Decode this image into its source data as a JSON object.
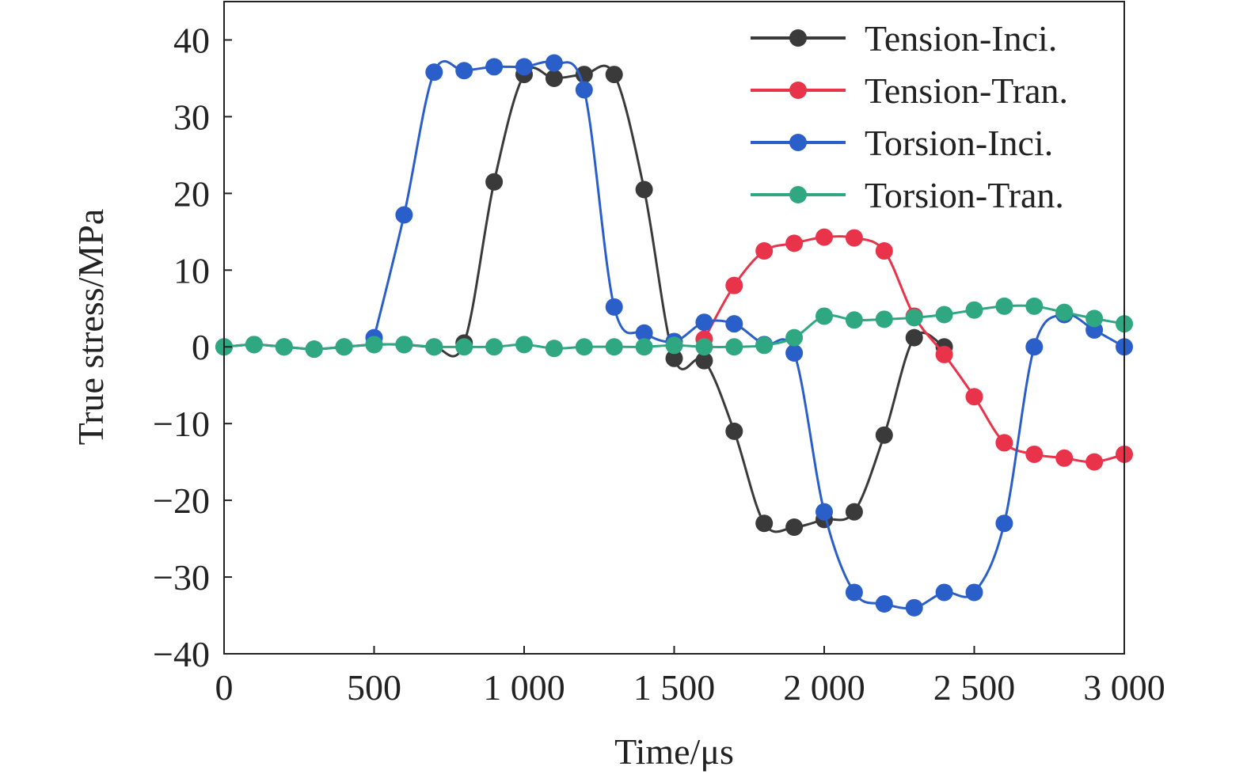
{
  "chart_data": {
    "type": "line",
    "xlabel": "Time/μs",
    "ylabel": "True stress/MPa",
    "xlim": [
      0,
      3000
    ],
    "ylim": [
      -40,
      45
    ],
    "x_ticks": [
      0,
      500,
      1000,
      1500,
      2000,
      2500,
      3000
    ],
    "x_tick_labels": [
      "0",
      "500",
      "1 000",
      "1 500",
      "2 000",
      "2 500",
      "3 000"
    ],
    "y_ticks": [
      -40,
      -30,
      -20,
      -10,
      0,
      10,
      20,
      30,
      40
    ],
    "y_tick_labels": [
      "−40",
      "−30",
      "−20",
      "−10",
      "0",
      "10",
      "20",
      "30",
      "40"
    ],
    "grid": false,
    "legend_position": "top-right",
    "series": [
      {
        "name": "Tension-Inci.",
        "color": "#3a3a3a",
        "x": [
          0,
          100,
          200,
          300,
          400,
          500,
          600,
          700,
          800,
          900,
          1000,
          1100,
          1200,
          1300,
          1400,
          1500,
          1600,
          1700,
          1800,
          1900,
          2000,
          2100,
          2200,
          2300,
          2400,
          2500,
          2600,
          2700,
          2800,
          2900,
          3000
        ],
        "y": [
          0,
          0.3,
          0,
          -0.3,
          0,
          0.3,
          0.3,
          0,
          0.5,
          21.5,
          35.5,
          35,
          35.5,
          35.5,
          20.5,
          -1.5,
          -1.8,
          -11,
          -23,
          -23.5,
          -22.5,
          -21.5,
          -11.5,
          1.2,
          0,
          null,
          null,
          null,
          null,
          null,
          null
        ]
      },
      {
        "name": "Tension-Tran.",
        "color": "#e8334a",
        "x": [
          1600,
          1700,
          1800,
          1900,
          2000,
          2100,
          2200,
          2300,
          2400,
          2500,
          2600,
          2700,
          2800,
          2900,
          3000
        ],
        "y": [
          1,
          8,
          12.5,
          13.5,
          14.3,
          14.2,
          12.5,
          4,
          -1,
          -6.5,
          -12.5,
          -14,
          -14.5,
          -15,
          -14
        ]
      },
      {
        "name": "Torsion-Inci.",
        "color": "#2a5fc9",
        "x": [
          500,
          600,
          700,
          800,
          900,
          1000,
          1100,
          1200,
          1300,
          1400,
          1500,
          1600,
          1700,
          1800,
          1900,
          2000,
          2100,
          2200,
          2300,
          2400,
          2500,
          2600,
          2700,
          2800,
          2900,
          3000
        ],
        "y": [
          1.2,
          17.2,
          35.8,
          36,
          36.5,
          36.5,
          37,
          33.5,
          5.2,
          1.8,
          0.7,
          3.2,
          3,
          0.3,
          -0.8,
          -21.5,
          -32,
          -33.5,
          -34,
          -32,
          -32,
          -23,
          0,
          4.2,
          2.2,
          0
        ]
      },
      {
        "name": "Torsion-Tran.",
        "color": "#2fa882",
        "x": [
          0,
          100,
          200,
          300,
          400,
          500,
          600,
          700,
          800,
          900,
          1000,
          1100,
          1200,
          1300,
          1400,
          1500,
          1600,
          1700,
          1800,
          1900,
          2000,
          2100,
          2200,
          2300,
          2400,
          2500,
          2600,
          2700,
          2800,
          2900,
          3000
        ],
        "y": [
          0,
          0.3,
          0,
          -0.3,
          0,
          0.3,
          0.3,
          0,
          0,
          0,
          0.3,
          -0.2,
          0,
          0,
          0,
          0.2,
          0,
          0,
          0.2,
          1.2,
          4,
          3.5,
          3.6,
          3.8,
          4.2,
          4.8,
          5.3,
          5.3,
          4.5,
          3.7,
          3
        ]
      }
    ]
  }
}
